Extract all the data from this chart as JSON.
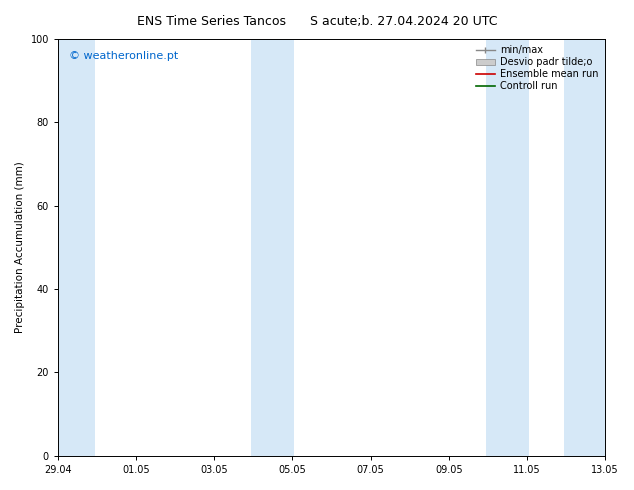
{
  "title_left": "ENS Time Series Tancos",
  "title_right": "S acute;b. 27.04.2024 20 UTC",
  "ylabel": "Precipitation Accumulation (mm)",
  "watermark": "© weatheronline.pt",
  "watermark_color": "#0066cc",
  "ylim": [
    0,
    100
  ],
  "yticks": [
    0,
    20,
    40,
    60,
    80,
    100
  ],
  "xtick_labels": [
    "29.04",
    "01.05",
    "03.05",
    "05.05",
    "07.05",
    "09.05",
    "11.05",
    "13.05"
  ],
  "xtick_positions": [
    0,
    2,
    4,
    6,
    8,
    10,
    12,
    14
  ],
  "bg_color": "#ffffff",
  "plot_bg_color": "#ffffff",
  "band_color": "#d6e8f7",
  "bands": [
    [
      -0.05,
      0.95
    ],
    [
      4.95,
      6.05
    ],
    [
      10.95,
      12.05
    ],
    [
      12.95,
      14.05
    ]
  ],
  "legend_labels": [
    "min/max",
    "Desvio padr tilde;o",
    "Ensemble mean run",
    "Controll run"
  ],
  "ensemble_mean_color": "#cc0000",
  "control_run_color": "#006600",
  "minmax_color": "#888888",
  "std_facecolor": "#cccccc",
  "std_edgecolor": "#888888",
  "fontsize_title": 9,
  "fontsize_axis": 7.5,
  "fontsize_tick": 7,
  "fontsize_legend": 7,
  "fontsize_watermark": 8
}
